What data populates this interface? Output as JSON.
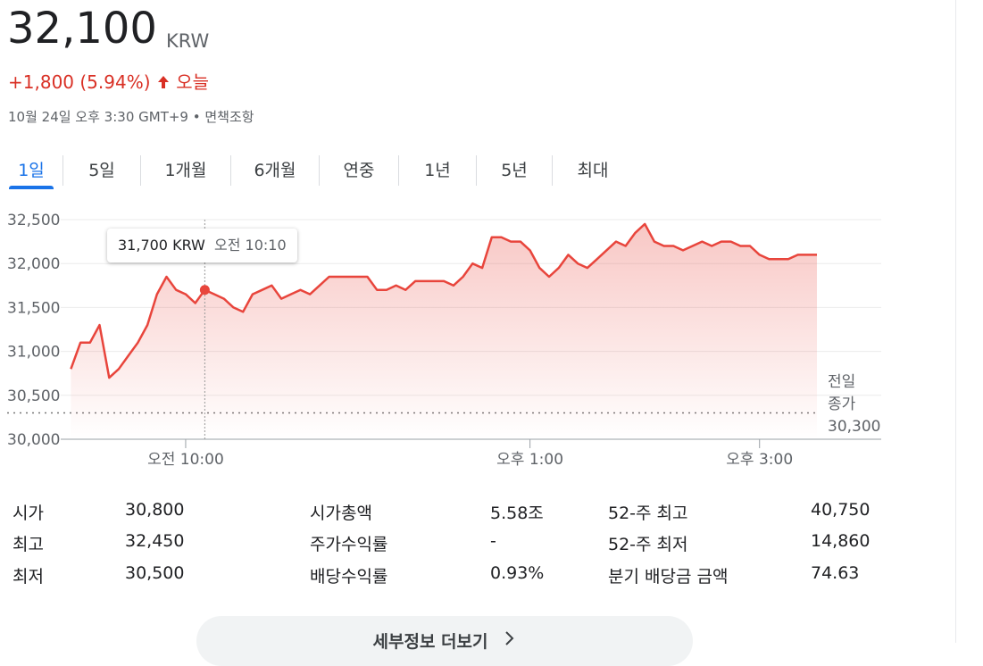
{
  "header": {
    "price": "32,100",
    "currency": "KRW",
    "change": "+1,800 (5.94%)",
    "period": "오늘",
    "timestamp": "10월 24일 오후 3:30 GMT+9",
    "disclaimer": "면책조항"
  },
  "tabs": [
    "1일",
    "5일",
    "1개월",
    "6개월",
    "연중",
    "1년",
    "5년",
    "최대"
  ],
  "selected_tab": 0,
  "tooltip": {
    "price": "31,700 KRW",
    "time": "오전 10:10",
    "point": 14
  },
  "chart_data": {
    "type": "line",
    "x": [
      540,
      545,
      550,
      555,
      560,
      565,
      570,
      575,
      580,
      585,
      590,
      595,
      600,
      605,
      610,
      615,
      620,
      625,
      630,
      635,
      640,
      645,
      650,
      655,
      660,
      665,
      670,
      675,
      680,
      685,
      690,
      695,
      700,
      705,
      710,
      715,
      720,
      725,
      730,
      735,
      740,
      745,
      750,
      755,
      760,
      765,
      770,
      775,
      780,
      785,
      790,
      795,
      800,
      805,
      810,
      815,
      820,
      825,
      830,
      835,
      840,
      845,
      850,
      855,
      860,
      865,
      870,
      875,
      880,
      885,
      890,
      895,
      900,
      905,
      910,
      915,
      920,
      925,
      930
    ],
    "series": [
      {
        "name": "KRW",
        "color": "#e8453c",
        "values": [
          30800,
          31100,
          31100,
          31300,
          30700,
          30800,
          30950,
          31100,
          31300,
          31650,
          31850,
          31700,
          31650,
          31550,
          31700,
          31650,
          31600,
          31500,
          31450,
          31650,
          31700,
          31750,
          31600,
          31650,
          31700,
          31650,
          31750,
          31850,
          31850,
          31850,
          31850,
          31850,
          31700,
          31700,
          31750,
          31700,
          31800,
          31800,
          31800,
          31800,
          31750,
          31850,
          32000,
          31950,
          32300,
          32300,
          32250,
          32250,
          32150,
          31950,
          31850,
          31950,
          32100,
          32000,
          31950,
          32050,
          32150,
          32250,
          32200,
          32350,
          32450,
          32250,
          32200,
          32200,
          32150,
          32200,
          32250,
          32200,
          32250,
          32250,
          32200,
          32200,
          32100,
          32050,
          32050,
          32050,
          32100,
          32100,
          32100
        ]
      }
    ],
    "xlim": [
      540,
      930
    ],
    "ylim": [
      30000,
      32500
    ],
    "xticks": [
      {
        "value": 600,
        "label": "오전 10:00"
      },
      {
        "value": 780,
        "label": "오후 1:00"
      },
      {
        "value": 900,
        "label": "오후 3:00"
      }
    ],
    "yticks": [
      {
        "value": 30000,
        "label": "30,000"
      },
      {
        "value": 30500,
        "label": "30,500"
      },
      {
        "value": 31000,
        "label": "31,000"
      },
      {
        "value": 31500,
        "label": "31,500"
      },
      {
        "value": 32000,
        "label": "32,000"
      },
      {
        "value": 32500,
        "label": "32,500"
      }
    ],
    "grid": true,
    "reference_line": {
      "value": 30300,
      "value_label": "30,300",
      "label": "전일 종가"
    }
  },
  "stats": [
    [
      {
        "label": "시가",
        "value": "30,800"
      },
      {
        "label": "최고",
        "value": "32,450"
      },
      {
        "label": "최저",
        "value": "30,500"
      }
    ],
    [
      {
        "label": "시가총액",
        "value": "5.58조"
      },
      {
        "label": "주가수익률",
        "value": "-"
      },
      {
        "label": "배당수익률",
        "value": "0.93%"
      }
    ],
    [
      {
        "label": "52-주 최고",
        "value": "40,750"
      },
      {
        "label": "52-주 최저",
        "value": "14,860"
      },
      {
        "label": "분기 배당금 금액",
        "value": "74.63"
      }
    ]
  ],
  "more_button": "세부정보 더보기"
}
